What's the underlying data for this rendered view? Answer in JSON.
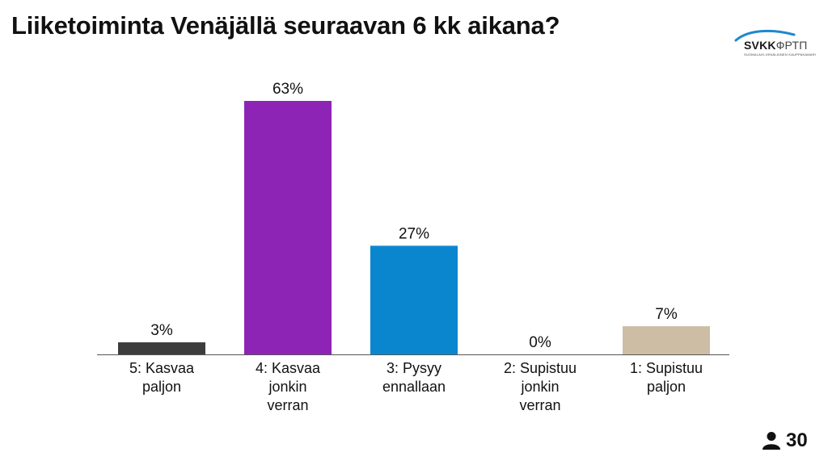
{
  "title": "Liiketoiminta Venäjällä seuraavan 6 kk aikana?",
  "logo": {
    "text_main": "SVKK",
    "text_alt": "ФРТП",
    "tagline": "SUOMALAIS-VENÄLÄINEN KAUPPAKAMARI",
    "color": "#1e88d0"
  },
  "participants": {
    "icon": "person-icon",
    "count": "30"
  },
  "chart_data": {
    "type": "bar",
    "title": "",
    "xlabel": "",
    "ylabel": "",
    "ylim": [
      0,
      100
    ],
    "grid": false,
    "categories": [
      [
        "5: Kasvaa",
        "paljon"
      ],
      [
        "4: Kasvaa",
        "jonkin",
        "verran"
      ],
      [
        "3: Pysyy",
        "ennallaan"
      ],
      [
        "2: Supistuu",
        "jonkin",
        "verran"
      ],
      [
        "1: Supistuu",
        "paljon"
      ]
    ],
    "values": [
      3,
      63,
      27,
      0,
      7
    ],
    "labels": [
      "3%",
      "63%",
      "27%",
      "0%",
      "7%"
    ],
    "colors": [
      "#3d3d3d",
      "#8e24b5",
      "#0a86cf",
      "#9e9e9e",
      "#cdbda5"
    ]
  }
}
